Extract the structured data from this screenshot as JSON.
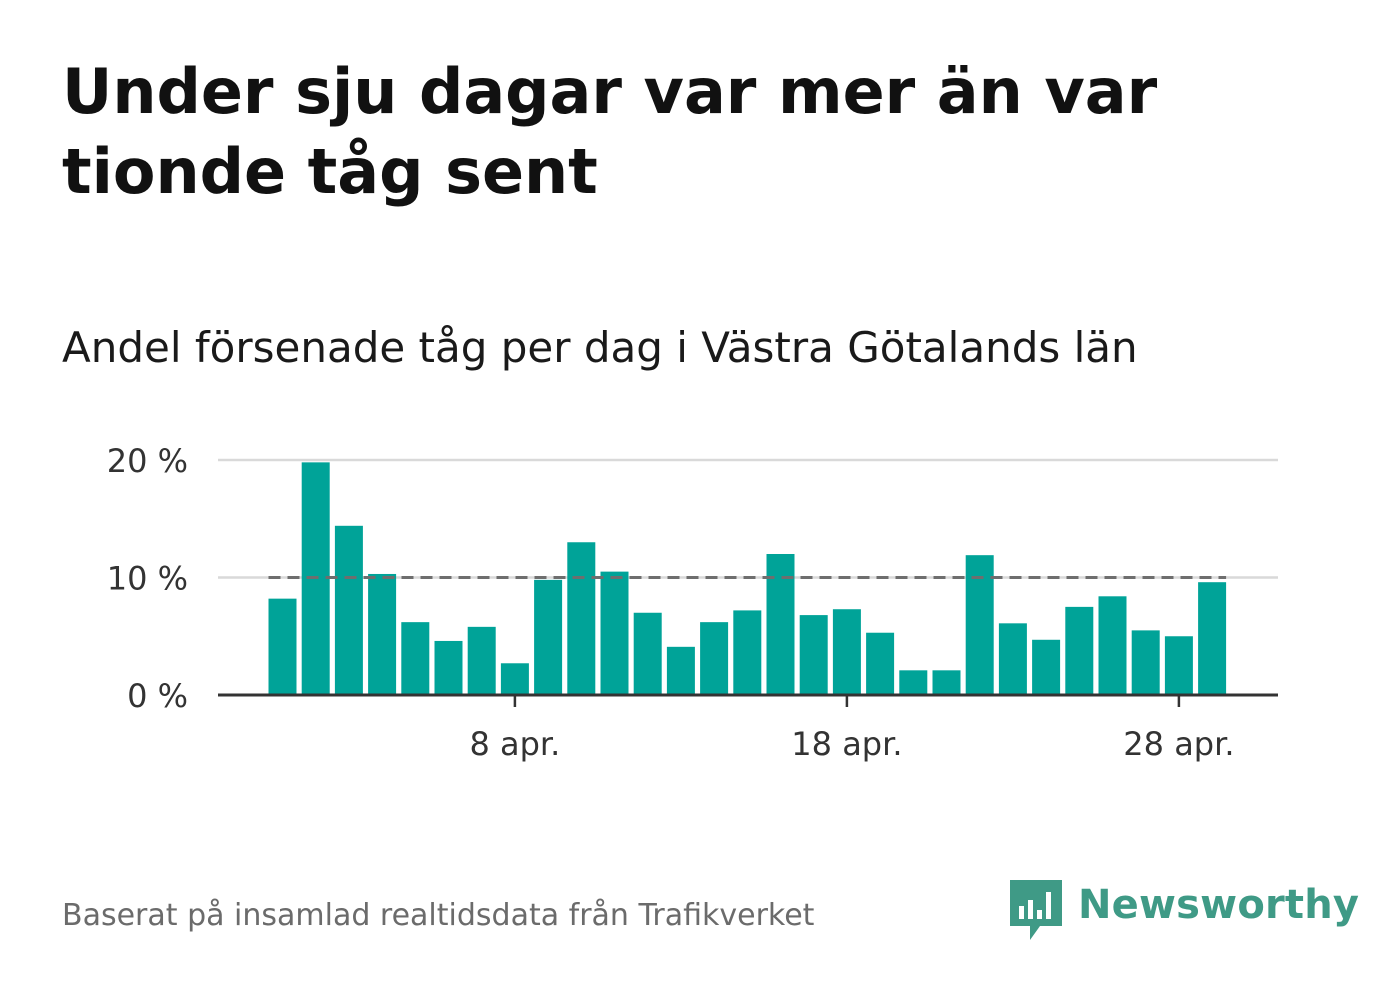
{
  "header": {
    "title": "Under sju dagar var mer än var tionde tåg sent",
    "subtitle": "Andel försenade tåg per dag i Västra Götalands län"
  },
  "footer": {
    "source": "Baserat på insamlad realtidsdata från Trafikverket"
  },
  "brand": {
    "name": "Newsworthy",
    "color": "#3f9a86"
  },
  "chart_data": {
    "type": "bar",
    "x": [
      "1 apr.",
      "2 apr.",
      "3 apr.",
      "4 apr.",
      "5 apr.",
      "6 apr.",
      "7 apr.",
      "8 apr.",
      "9 apr.",
      "10 apr.",
      "11 apr.",
      "12 apr.",
      "13 apr.",
      "14 apr.",
      "15 apr.",
      "16 apr.",
      "17 apr.",
      "18 apr.",
      "19 apr.",
      "20 apr.",
      "21 apr.",
      "22 apr.",
      "23 apr.",
      "24 apr.",
      "25 apr.",
      "26 apr.",
      "27 apr.",
      "28 apr.",
      "29 apr."
    ],
    "values": [
      8.2,
      19.8,
      14.4,
      10.3,
      6.2,
      4.6,
      5.8,
      2.7,
      9.8,
      13.0,
      10.5,
      7.0,
      4.1,
      6.2,
      7.2,
      12.0,
      6.8,
      7.3,
      5.3,
      2.1,
      2.1,
      11.9,
      6.1,
      4.7,
      7.5,
      8.4,
      5.5,
      5.0,
      9.6
    ],
    "xticks": [
      "8 apr.",
      "18 apr.",
      "28 apr."
    ],
    "yticks": [
      "0 %",
      "10 %",
      "20 %"
    ],
    "ylim": [
      0,
      20
    ],
    "reference_line": 10,
    "bar_color": "#00a398",
    "grid": true,
    "xlabel": "",
    "ylabel": ""
  }
}
